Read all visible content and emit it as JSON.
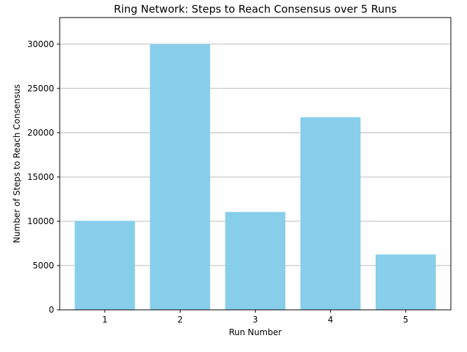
{
  "chart_data": {
    "type": "bar",
    "title": "Ring Network: Steps to Reach Consensus over 5 Runs",
    "xlabel": "Run Number",
    "ylabel": "Number of Steps to Reach Consensus",
    "categories": [
      "1",
      "2",
      "3",
      "4",
      "5"
    ],
    "values": [
      10050,
      30000,
      11050,
      21750,
      6250
    ],
    "ylim": [
      0,
      33000
    ],
    "yticks": [
      0,
      5000,
      10000,
      15000,
      20000,
      25000,
      30000
    ],
    "grid": "y-major",
    "colors": {
      "bar": "#87ceeb",
      "grid": "#b0b0b0",
      "axis": "#000000"
    }
  }
}
